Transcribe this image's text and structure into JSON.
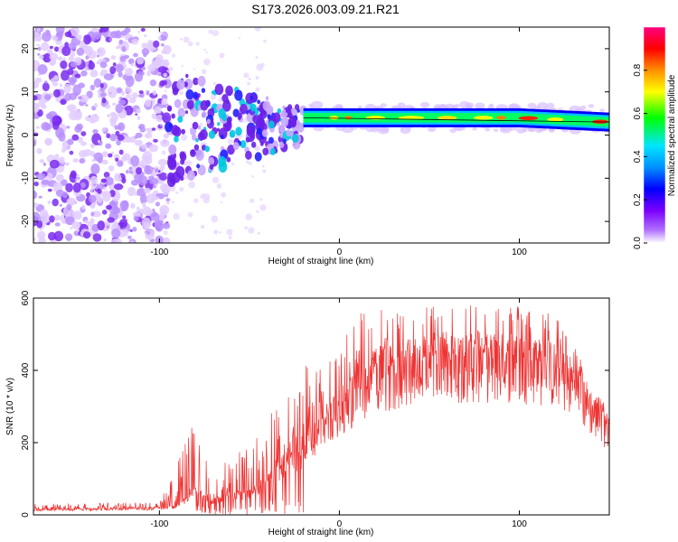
{
  "title": "S173.2026.003.09.21.R21",
  "chart_data": [
    {
      "type": "heatmap",
      "title": "S173.2026.003.09.21.R21",
      "xlabel": "Height of straight line (km)",
      "ylabel": "Frequency (Hz)",
      "xlim": [
        -170,
        150
      ],
      "ylim": [
        -25,
        25
      ],
      "x_ticks": [
        -100,
        0,
        100
      ],
      "y_ticks": [
        -20,
        -10,
        0,
        10,
        20
      ],
      "colorbar": {
        "label": "Normalized spectral amplitude",
        "range": [
          0,
          1
        ],
        "ticks": [
          0.0,
          0.2,
          0.4,
          0.6,
          0.8
        ],
        "colors": [
          "#ffffff",
          "#7b00ff",
          "#0000ff",
          "#00e5ff",
          "#00ff00",
          "#ffff00",
          "#ff8000",
          "#ff0000",
          "#ff0080"
        ]
      },
      "ridge": {
        "description_points_km_hz": [
          [
            -20,
            4
          ],
          [
            0,
            4
          ],
          [
            20,
            4
          ],
          [
            60,
            4
          ],
          [
            100,
            4
          ],
          [
            150,
            3
          ]
        ]
      }
    },
    {
      "type": "line",
      "xlabel": "Height of straight line (km)",
      "ylabel": "SNR (10 * v/v)",
      "xlim": [
        -170,
        150
      ],
      "ylim": [
        0,
        600
      ],
      "x_ticks": [
        -100,
        0,
        100
      ],
      "y_ticks": [
        0,
        200,
        400,
        600
      ],
      "series": [
        {
          "name": "SNR",
          "color": "#ee3333",
          "envelope_x": [
            -170,
            -100,
            -90,
            -80,
            -70,
            -60,
            -50,
            -40,
            -30,
            -20,
            -10,
            0,
            10,
            20,
            40,
            60,
            80,
            100,
            120,
            130,
            140,
            150
          ],
          "baseline": [
            15,
            18,
            25,
            70,
            40,
            60,
            60,
            100,
            150,
            180,
            260,
            300,
            360,
            400,
            430,
            440,
            440,
            440,
            420,
            380,
            310,
            250
          ],
          "peaks": [
            30,
            35,
            150,
            280,
            120,
            160,
            220,
            280,
            330,
            420,
            430,
            480,
            560,
            570,
            580,
            580,
            600,
            580,
            560,
            480,
            360,
            300
          ]
        }
      ]
    }
  ]
}
